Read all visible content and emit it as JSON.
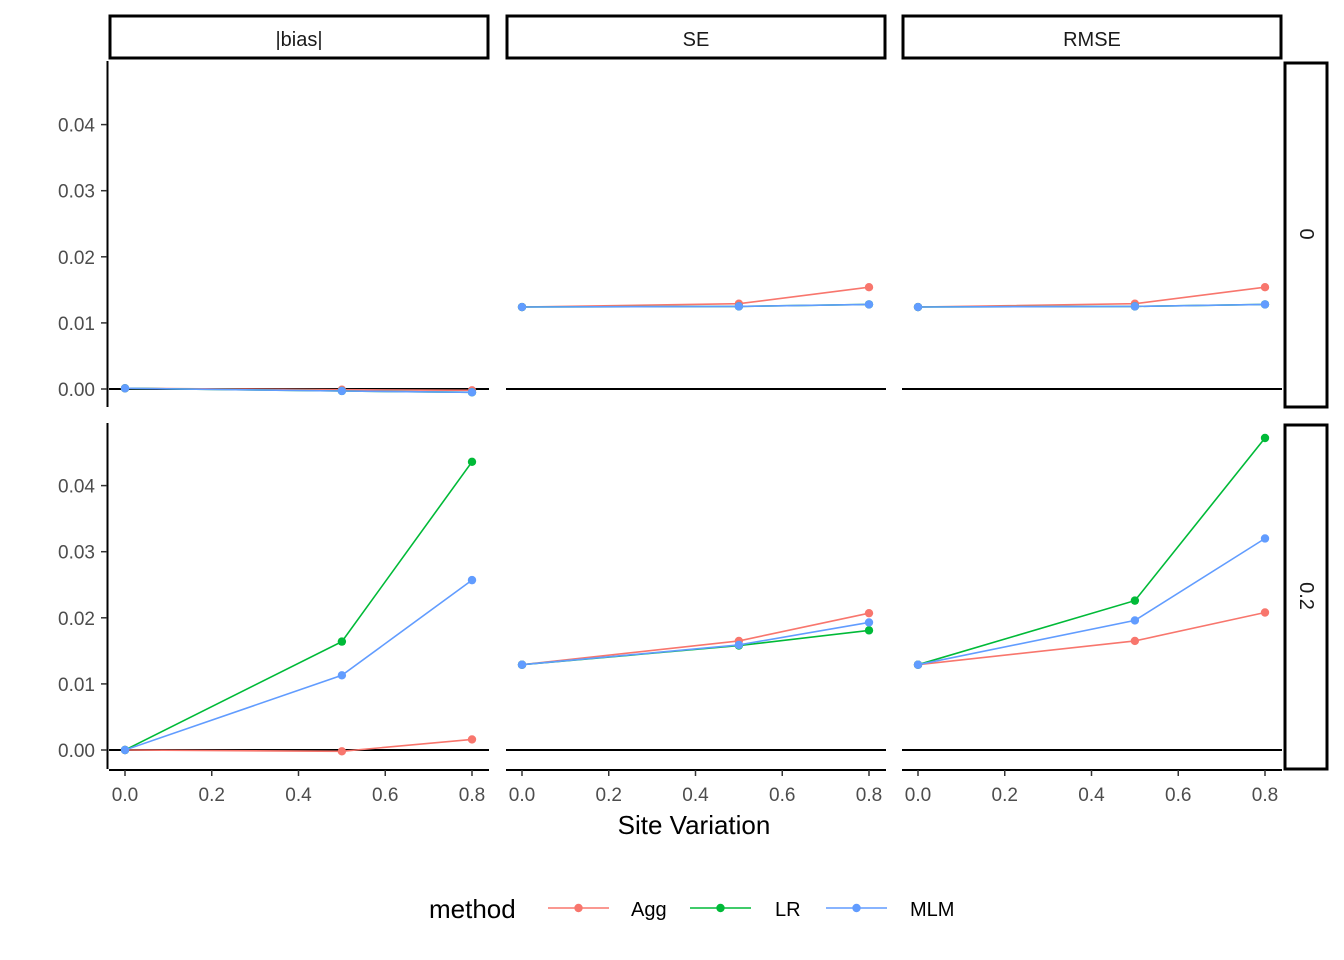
{
  "chart_data": {
    "type": "line",
    "xlabel": "Site Variation",
    "ylabel": "",
    "xlim": [
      0,
      0.8
    ],
    "ylim": [
      0,
      0.045
    ],
    "x_ticks": [
      "0.0",
      "0.2",
      "0.4",
      "0.6",
      "0.8"
    ],
    "y_ticks": [
      "0.00",
      "0.01",
      "0.02",
      "0.03",
      "0.04"
    ],
    "x_tick_values": [
      0,
      0.2,
      0.4,
      0.6,
      0.8
    ],
    "y_tick_values": [
      0,
      0.01,
      0.02,
      0.03,
      0.04
    ],
    "reference_line_y": 0,
    "grid": false,
    "legend": {
      "title": "method",
      "position": "bottom",
      "entries": [
        "Agg",
        "LR",
        "MLM"
      ]
    },
    "series_colors": {
      "Agg": "#F8766D",
      "LR": "#00BA38",
      "MLM": "#619CFF"
    },
    "column_facets": [
      "|bias|",
      "SE",
      "RMSE"
    ],
    "row_facets": [
      "0",
      "0.2"
    ],
    "x": [
      0,
      0.5,
      0.8
    ],
    "panels": [
      {
        "col": "|bias|",
        "row": "0",
        "series": [
          {
            "name": "Agg",
            "values": [
              0.0001,
              -0.0001,
              -0.0002
            ]
          },
          {
            "name": "LR",
            "values": [
              0.0001,
              -0.0003,
              -0.0005
            ]
          },
          {
            "name": "MLM",
            "values": [
              0.0001,
              -0.0003,
              -0.0005
            ]
          }
        ]
      },
      {
        "col": "SE",
        "row": "0",
        "series": [
          {
            "name": "Agg",
            "values": [
              0.0124,
              0.0129,
              0.0154
            ]
          },
          {
            "name": "LR",
            "values": [
              0.0124,
              0.0125,
              0.0128
            ]
          },
          {
            "name": "MLM",
            "values": [
              0.0124,
              0.0125,
              0.0128
            ]
          }
        ]
      },
      {
        "col": "RMSE",
        "row": "0",
        "series": [
          {
            "name": "Agg",
            "values": [
              0.0124,
              0.0129,
              0.0154
            ]
          },
          {
            "name": "LR",
            "values": [
              0.0124,
              0.0125,
              0.0128
            ]
          },
          {
            "name": "MLM",
            "values": [
              0.0124,
              0.0125,
              0.0128
            ]
          }
        ]
      },
      {
        "col": "|bias|",
        "row": "0.2",
        "series": [
          {
            "name": "Agg",
            "values": [
              0.0,
              -0.0002,
              0.0016
            ]
          },
          {
            "name": "LR",
            "values": [
              0.0,
              0.0164,
              0.0436
            ]
          },
          {
            "name": "MLM",
            "values": [
              0.0,
              0.0113,
              0.0257
            ]
          }
        ]
      },
      {
        "col": "SE",
        "row": "0.2",
        "series": [
          {
            "name": "Agg",
            "values": [
              0.0129,
              0.0165,
              0.0207
            ]
          },
          {
            "name": "LR",
            "values": [
              0.0129,
              0.0158,
              0.0181
            ]
          },
          {
            "name": "MLM",
            "values": [
              0.0129,
              0.0159,
              0.0193
            ]
          }
        ]
      },
      {
        "col": "RMSE",
        "row": "0.2",
        "series": [
          {
            "name": "Agg",
            "values": [
              0.0129,
              0.0165,
              0.0208
            ]
          },
          {
            "name": "LR",
            "values": [
              0.0129,
              0.0226,
              0.0472
            ]
          },
          {
            "name": "MLM",
            "values": [
              0.0129,
              0.0196,
              0.032
            ]
          }
        ]
      }
    ]
  }
}
